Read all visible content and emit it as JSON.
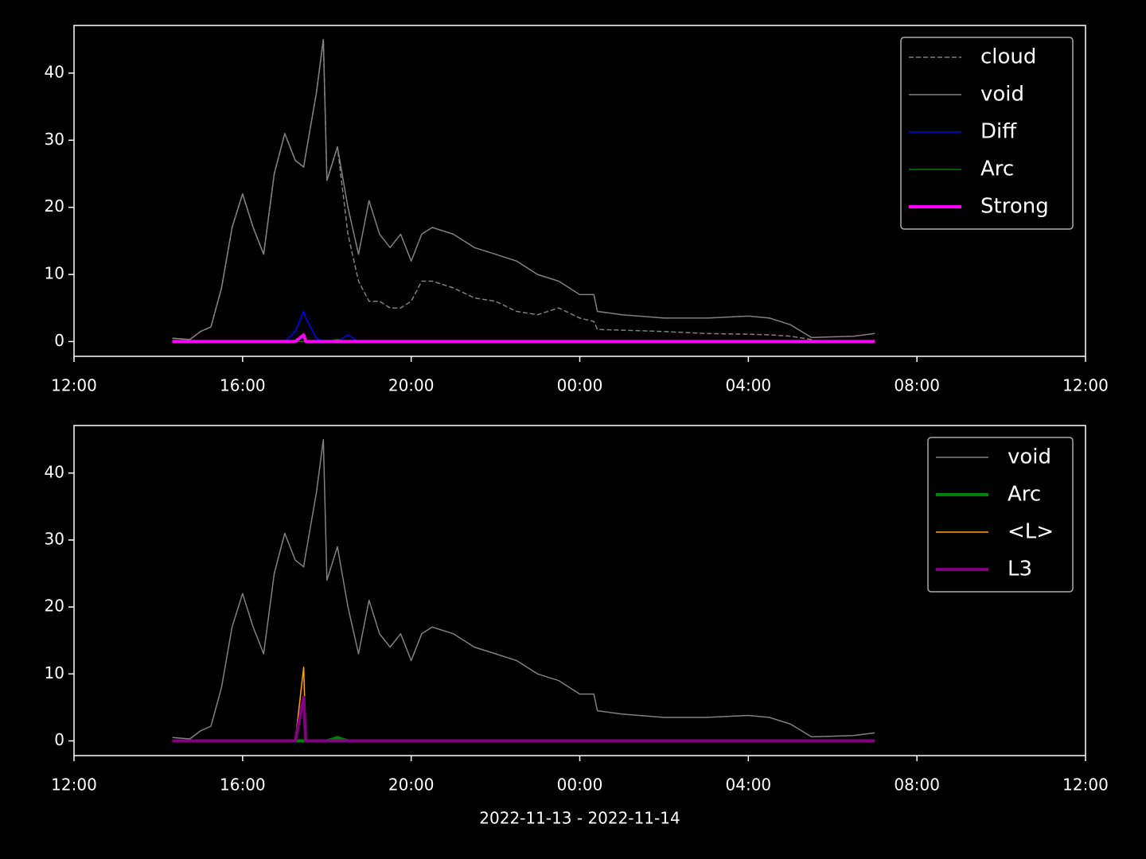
{
  "chart_data": [
    {
      "type": "line",
      "x": [
        "2022-11-13 14:20",
        "2022-11-13 14:45",
        "2022-11-13 15:00",
        "2022-11-13 15:15",
        "2022-11-13 15:30",
        "2022-11-13 15:45",
        "2022-11-13 16:00",
        "2022-11-13 16:15",
        "2022-11-13 16:30",
        "2022-11-13 16:45",
        "2022-11-13 17:00",
        "2022-11-13 17:15",
        "2022-11-13 17:27",
        "2022-11-13 17:30",
        "2022-11-13 17:45",
        "2022-11-13 17:55",
        "2022-11-13 18:00",
        "2022-11-13 18:15",
        "2022-11-13 18:30",
        "2022-11-13 18:45",
        "2022-11-13 19:00",
        "2022-11-13 19:15",
        "2022-11-13 19:30",
        "2022-11-13 19:45",
        "2022-11-13 20:00",
        "2022-11-13 20:15",
        "2022-11-13 20:30",
        "2022-11-13 21:00",
        "2022-11-13 21:30",
        "2022-11-13 22:00",
        "2022-11-13 22:30",
        "2022-11-13 23:00",
        "2022-11-13 23:30",
        "2022-11-14 00:00",
        "2022-11-14 00:20",
        "2022-11-14 00:25",
        "2022-11-14 01:00",
        "2022-11-14 02:00",
        "2022-11-14 03:00",
        "2022-11-14 04:00",
        "2022-11-14 04:30",
        "2022-11-14 05:00",
        "2022-11-14 05:30",
        "2022-11-14 06:00",
        "2022-11-14 06:30",
        "2022-11-14 07:00"
      ],
      "series": [
        {
          "name": "cloud",
          "color": "#808080",
          "linestyle": "dashed",
          "linewidth": 1.5,
          "values": [
            0.5,
            0.3,
            1.5,
            2.2,
            8,
            17,
            22,
            17,
            13,
            25,
            31,
            27,
            26,
            28,
            37,
            45,
            24,
            29,
            16,
            9,
            6,
            6,
            5,
            5,
            6,
            9,
            9,
            8,
            6.5,
            6,
            4.5,
            4,
            5,
            3.5,
            3,
            1.8,
            1.7,
            1.5,
            1.2,
            1.1,
            1,
            0.8,
            0.3,
            null,
            null,
            null
          ]
        },
        {
          "name": "void",
          "color": "#808080",
          "linestyle": "solid",
          "linewidth": 1.5,
          "values": [
            0.5,
            0.3,
            1.5,
            2.2,
            8,
            17,
            22,
            17,
            13,
            25,
            31,
            27,
            26,
            28,
            37,
            45,
            24,
            29,
            20,
            13,
            21,
            16,
            14,
            16,
            12,
            16,
            17,
            16,
            14,
            13,
            12,
            10,
            9,
            7,
            7,
            4.5,
            4,
            3.5,
            3.5,
            3.8,
            3.5,
            2.5,
            0.6,
            0.7,
            0.8,
            1.2
          ]
        },
        {
          "name": "Diff",
          "color": "#0000ff",
          "linestyle": "solid",
          "linewidth": 1.5,
          "values": [
            0,
            0,
            0,
            0,
            0,
            0,
            0,
            0,
            0,
            0,
            0,
            1.5,
            4.5,
            3.5,
            0.5,
            0,
            0,
            0,
            1,
            0,
            0,
            0,
            0,
            0,
            0,
            0,
            0,
            0,
            0,
            0,
            0,
            0,
            0,
            0,
            0,
            0,
            0,
            0,
            0,
            0,
            0,
            0,
            0,
            0,
            0,
            0
          ]
        },
        {
          "name": "Arc",
          "color": "#008000",
          "linestyle": "solid",
          "linewidth": 1.5,
          "values": [
            0,
            0,
            0,
            0,
            0,
            0,
            0,
            0,
            0,
            0,
            0,
            0,
            0,
            0,
            0,
            0,
            0,
            0.3,
            0,
            0,
            0,
            0,
            0,
            0,
            0,
            0,
            0,
            0,
            0,
            0,
            0,
            0,
            0,
            0,
            0,
            0,
            0,
            0,
            0,
            0,
            0,
            0,
            0,
            0,
            0,
            0
          ]
        },
        {
          "name": "Strong",
          "color": "#ff00ff",
          "linestyle": "solid",
          "linewidth": 4,
          "values": [
            0,
            0,
            0,
            0,
            0,
            0,
            0,
            0,
            0,
            0,
            0,
            0,
            1,
            0,
            0,
            0,
            0,
            0,
            0,
            0,
            0,
            0,
            0,
            0,
            0,
            0,
            0,
            0,
            0,
            0,
            0,
            0,
            0,
            0,
            0,
            0,
            0,
            0,
            0,
            0,
            0,
            0,
            0,
            0,
            0,
            0
          ]
        }
      ],
      "xlim": [
        "2022-11-13 12:00",
        "2022-11-14 12:00"
      ],
      "xticks": [
        {
          "value": "2022-11-13 12:00",
          "label": "12:00"
        },
        {
          "value": "2022-11-13 16:00",
          "label": "16:00"
        },
        {
          "value": "2022-11-13 20:00",
          "label": "20:00"
        },
        {
          "value": "2022-11-14 00:00",
          "label": "00:00"
        },
        {
          "value": "2022-11-14 04:00",
          "label": "04:00"
        },
        {
          "value": "2022-11-14 08:00",
          "label": "08:00"
        },
        {
          "value": "2022-11-14 12:00",
          "label": "12:00"
        }
      ],
      "ylim": [
        -2.2,
        47.1
      ],
      "yticks": [
        0,
        10,
        20,
        30,
        40
      ],
      "legend": "upper right"
    },
    {
      "type": "line",
      "x": [
        "2022-11-13 14:20",
        "2022-11-13 14:45",
        "2022-11-13 15:00",
        "2022-11-13 15:15",
        "2022-11-13 15:30",
        "2022-11-13 15:45",
        "2022-11-13 16:00",
        "2022-11-13 16:15",
        "2022-11-13 16:30",
        "2022-11-13 16:45",
        "2022-11-13 17:00",
        "2022-11-13 17:15",
        "2022-11-13 17:27",
        "2022-11-13 17:30",
        "2022-11-13 17:45",
        "2022-11-13 17:55",
        "2022-11-13 18:00",
        "2022-11-13 18:15",
        "2022-11-13 18:30",
        "2022-11-13 18:45",
        "2022-11-13 19:00",
        "2022-11-13 19:15",
        "2022-11-13 19:30",
        "2022-11-13 19:45",
        "2022-11-13 20:00",
        "2022-11-13 20:15",
        "2022-11-13 20:30",
        "2022-11-13 21:00",
        "2022-11-13 21:30",
        "2022-11-13 22:00",
        "2022-11-13 22:30",
        "2022-11-13 23:00",
        "2022-11-13 23:30",
        "2022-11-14 00:00",
        "2022-11-14 00:20",
        "2022-11-14 00:25",
        "2022-11-14 01:00",
        "2022-11-14 02:00",
        "2022-11-14 03:00",
        "2022-11-14 04:00",
        "2022-11-14 04:30",
        "2022-11-14 05:00",
        "2022-11-14 05:30",
        "2022-11-14 06:00",
        "2022-11-14 06:30",
        "2022-11-14 07:00"
      ],
      "series": [
        {
          "name": "void",
          "color": "#808080",
          "linestyle": "solid",
          "linewidth": 1.5,
          "values": [
            0.5,
            0.3,
            1.5,
            2.2,
            8,
            17,
            22,
            17,
            13,
            25,
            31,
            27,
            26,
            28,
            37,
            45,
            24,
            29,
            20,
            13,
            21,
            16,
            14,
            16,
            12,
            16,
            17,
            16,
            14,
            13,
            12,
            10,
            9,
            7,
            7,
            4.5,
            4,
            3.5,
            3.5,
            3.8,
            3.5,
            2.5,
            0.6,
            0.7,
            0.8,
            1.2
          ]
        },
        {
          "name": "Arc",
          "color": "#008000",
          "linestyle": "solid",
          "linewidth": 4,
          "values": [
            0,
            0,
            0,
            0,
            0,
            0,
            0,
            0,
            0,
            0,
            0,
            0,
            0,
            0,
            0,
            0,
            0,
            0.5,
            0,
            0,
            0,
            0,
            0,
            0,
            0,
            0,
            0,
            0,
            0,
            0,
            0,
            0,
            0,
            0,
            0,
            0,
            0,
            0,
            0,
            0,
            0,
            0,
            0,
            0,
            0,
            0
          ]
        },
        {
          "name": "<L>",
          "color": "#ffa500",
          "linestyle": "solid",
          "linewidth": 1.5,
          "values": [
            0,
            0,
            0,
            0,
            0,
            0,
            0,
            0,
            0,
            0,
            0,
            0,
            11,
            0,
            0,
            0,
            0,
            0,
            0,
            0,
            0,
            0,
            0,
            0,
            0,
            0,
            0,
            0,
            0,
            0,
            0,
            0,
            0,
            0,
            0,
            0,
            0,
            0,
            0,
            0,
            0,
            0,
            0,
            0,
            0,
            0
          ]
        },
        {
          "name": "L3",
          "color": "#800080",
          "linestyle": "solid",
          "linewidth": 4,
          "values": [
            0,
            0,
            0,
            0,
            0,
            0,
            0,
            0,
            0,
            0,
            0,
            0,
            6.5,
            0,
            0,
            0,
            0,
            0,
            0,
            0,
            0,
            0,
            0,
            0,
            0,
            0,
            0,
            0,
            0,
            0,
            0,
            0,
            0,
            0,
            0,
            0,
            0,
            0,
            0,
            0,
            0,
            0,
            0,
            0,
            0,
            0
          ]
        }
      ],
      "xlabel": "2022-11-13 - 2022-11-14",
      "xlim": [
        "2022-11-13 12:00",
        "2022-11-14 12:00"
      ],
      "xticks": [
        {
          "value": "2022-11-13 12:00",
          "label": "12:00"
        },
        {
          "value": "2022-11-13 16:00",
          "label": "16:00"
        },
        {
          "value": "2022-11-13 20:00",
          "label": "20:00"
        },
        {
          "value": "2022-11-14 00:00",
          "label": "00:00"
        },
        {
          "value": "2022-11-14 04:00",
          "label": "04:00"
        },
        {
          "value": "2022-11-14 08:00",
          "label": "08:00"
        },
        {
          "value": "2022-11-14 12:00",
          "label": "12:00"
        }
      ],
      "ylim": [
        -2.2,
        47.1
      ],
      "yticks": [
        0,
        10,
        20,
        30,
        40
      ],
      "legend": "upper right"
    }
  ]
}
